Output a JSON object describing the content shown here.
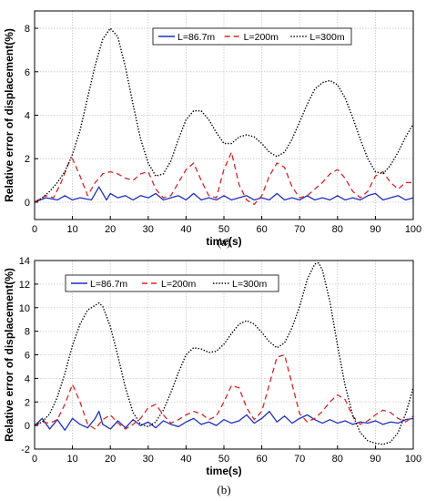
{
  "chart_data": [
    {
      "type": "line",
      "caption": "(a)",
      "xlabel": "time(s)",
      "ylabel": "Relative error of displacement(%)",
      "xlim": [
        0,
        100
      ],
      "ylim": [
        -0.8,
        8.8
      ],
      "xticks": [
        0,
        10,
        20,
        30,
        40,
        50,
        60,
        70,
        80,
        90,
        100
      ],
      "yticks": [
        0,
        2,
        4,
        6,
        8
      ],
      "grid": true,
      "legend_position": "top-right",
      "series": [
        {
          "name": "L=86.7m",
          "color": "#1f2fbf",
          "style": "solid",
          "x": [
            0,
            3,
            6,
            8,
            10,
            12,
            15,
            17,
            19,
            20,
            22,
            24,
            26,
            28,
            30,
            32,
            34,
            36,
            38,
            40,
            42,
            44,
            46,
            48,
            50,
            52,
            54,
            56,
            58,
            60,
            62,
            64,
            66,
            68,
            70,
            72,
            74,
            76,
            78,
            80,
            82,
            84,
            86,
            88,
            90,
            92,
            94,
            96,
            98,
            100
          ],
          "y": [
            0,
            0.2,
            0.1,
            0.3,
            0.1,
            0.2,
            0.1,
            0.7,
            0.1,
            0.4,
            0.2,
            0.3,
            0.1,
            0.3,
            0.2,
            0.4,
            0.1,
            0.2,
            0.3,
            0.1,
            0.4,
            0.1,
            0.2,
            0.1,
            0.3,
            0.1,
            0.2,
            0.3,
            0.1,
            0.2,
            0.1,
            0.4,
            0.1,
            0.2,
            0.1,
            0.3,
            0.1,
            0.2,
            0.1,
            0.3,
            0.1,
            0.2,
            0.1,
            0.3,
            0.4,
            0.1,
            0.2,
            0.3,
            0.1,
            0.2
          ]
        },
        {
          "name": "L=200m",
          "color": "#d62728",
          "style": "dashed",
          "x": [
            0,
            3,
            5,
            7,
            9,
            10,
            12,
            14,
            16,
            18,
            20,
            22,
            24,
            26,
            28,
            30,
            32,
            34,
            36,
            38,
            40,
            42,
            44,
            46,
            48,
            50,
            52,
            54,
            56,
            58,
            60,
            62,
            64,
            66,
            68,
            70,
            72,
            74,
            76,
            78,
            80,
            82,
            84,
            86,
            88,
            90,
            92,
            94,
            96,
            98,
            100
          ],
          "y": [
            0,
            0.3,
            0.2,
            0.9,
            1.8,
            2.0,
            1.2,
            0.3,
            0.9,
            1.3,
            1.4,
            1.3,
            1.1,
            1.0,
            1.3,
            1.4,
            0.6,
            0.2,
            0.3,
            0.9,
            1.5,
            1.8,
            1.0,
            0.3,
            0.2,
            1.5,
            2.3,
            0.8,
            0.1,
            -0.1,
            0.3,
            1.2,
            1.8,
            1.6,
            0.7,
            0.2,
            0.3,
            0.6,
            0.9,
            1.3,
            1.5,
            1.1,
            0.5,
            0.2,
            0.5,
            1.2,
            1.4,
            0.9,
            0.6,
            0.9,
            0.9
          ]
        },
        {
          "name": "L=300m",
          "color": "#000000",
          "style": "dotted",
          "x": [
            0,
            2,
            4,
            6,
            8,
            10,
            12,
            14,
            16,
            18,
            20,
            22,
            24,
            26,
            28,
            30,
            32,
            34,
            36,
            38,
            40,
            42,
            44,
            46,
            48,
            50,
            52,
            54,
            56,
            58,
            60,
            62,
            64,
            66,
            68,
            70,
            72,
            74,
            76,
            78,
            80,
            82,
            84,
            86,
            88,
            90,
            92,
            94,
            96,
            98,
            100
          ],
          "y": [
            0,
            0.2,
            0.5,
            0.9,
            1.4,
            2.2,
            3.3,
            4.8,
            6.3,
            7.5,
            8.0,
            7.6,
            6.2,
            4.5,
            2.9,
            1.8,
            1.2,
            1.3,
            1.9,
            2.9,
            3.8,
            4.2,
            4.2,
            3.8,
            3.2,
            2.7,
            2.7,
            3.0,
            3.1,
            3.0,
            2.7,
            2.3,
            2.1,
            2.3,
            2.9,
            3.7,
            4.5,
            5.2,
            5.5,
            5.6,
            5.4,
            4.8,
            3.9,
            2.9,
            2.0,
            1.4,
            1.3,
            1.7,
            2.3,
            3.0,
            3.6
          ]
        }
      ]
    },
    {
      "type": "line",
      "caption": "(b)",
      "xlabel": "time(s)",
      "ylabel": "Relative error of displacement(%)",
      "xlim": [
        0,
        100
      ],
      "ylim": [
        -2,
        14
      ],
      "xticks": [
        0,
        10,
        20,
        30,
        40,
        50,
        60,
        70,
        80,
        90,
        100
      ],
      "yticks": [
        -2,
        0,
        2,
        4,
        6,
        8,
        10,
        12,
        14
      ],
      "grid": true,
      "legend_position": "top-left",
      "series": [
        {
          "name": "L=86.7m",
          "color": "#1f2fbf",
          "style": "solid",
          "x": [
            0,
            2,
            4,
            6,
            8,
            10,
            12,
            14,
            16,
            17,
            18,
            20,
            22,
            24,
            26,
            28,
            30,
            32,
            34,
            36,
            38,
            40,
            42,
            44,
            46,
            48,
            50,
            52,
            54,
            56,
            58,
            60,
            62,
            64,
            66,
            68,
            70,
            72,
            74,
            76,
            78,
            80,
            82,
            84,
            86,
            88,
            90,
            92,
            94,
            96,
            98,
            100
          ],
          "y": [
            0,
            0.6,
            -0.3,
            0.5,
            -0.4,
            0.6,
            0.1,
            -0.2,
            0.6,
            1.2,
            0.1,
            -0.3,
            0.4,
            -0.2,
            0.5,
            0,
            0.3,
            -0.2,
            0.4,
            0.1,
            -0.1,
            0.3,
            0.6,
            0.1,
            0.3,
            0,
            0.5,
            0.2,
            0.4,
            0.9,
            0.2,
            0.6,
            1.2,
            0.3,
            0.8,
            0.2,
            0.6,
            0.9,
            0.5,
            0.2,
            0.5,
            0.2,
            0.4,
            0.1,
            0.3,
            0.2,
            0.4,
            0.1,
            0.3,
            0.2,
            0.5,
            0.6
          ]
        },
        {
          "name": "L=200m",
          "color": "#d62728",
          "style": "dashed",
          "x": [
            0,
            2,
            4,
            6,
            8,
            10,
            12,
            14,
            16,
            18,
            20,
            22,
            24,
            26,
            28,
            30,
            32,
            34,
            36,
            38,
            40,
            42,
            44,
            46,
            48,
            50,
            52,
            54,
            56,
            58,
            60,
            62,
            64,
            66,
            68,
            70,
            72,
            74,
            76,
            78,
            80,
            82,
            84,
            86,
            88,
            90,
            92,
            94,
            96,
            98,
            100
          ],
          "y": [
            0,
            0.3,
            0.2,
            0.5,
            1.8,
            3.5,
            2.0,
            0.1,
            -0.3,
            0.5,
            0.9,
            0.2,
            -0.3,
            0.1,
            0.6,
            1.5,
            1.8,
            0.9,
            0.2,
            0.5,
            0.9,
            1.2,
            1.0,
            0.5,
            0.8,
            2.0,
            3.4,
            3.2,
            1.5,
            0.5,
            1.2,
            3.5,
            5.8,
            6.0,
            3.5,
            1.0,
            0.3,
            0.6,
            1.2,
            2.0,
            2.6,
            2.2,
            0.8,
            0.1,
            0.4,
            0.9,
            1.3,
            1.1,
            0.6,
            0.3,
            0.8
          ]
        },
        {
          "name": "L=300m",
          "color": "#000000",
          "style": "dotted",
          "x": [
            0,
            2,
            4,
            6,
            8,
            10,
            12,
            14,
            16,
            17,
            18,
            20,
            22,
            24,
            26,
            28,
            30,
            32,
            34,
            36,
            38,
            40,
            42,
            44,
            46,
            48,
            50,
            52,
            54,
            56,
            58,
            60,
            62,
            64,
            66,
            68,
            70,
            72,
            74,
            75,
            76,
            78,
            80,
            82,
            84,
            86,
            88,
            90,
            92,
            94,
            96,
            98,
            100
          ],
          "y": [
            0,
            0.3,
            1.0,
            2.4,
            4.4,
            6.8,
            8.6,
            9.8,
            10.2,
            10.4,
            10.1,
            8.4,
            5.9,
            3.2,
            1.1,
            0.1,
            -0.1,
            0.3,
            1.3,
            2.8,
            4.5,
            6.0,
            6.6,
            6.5,
            6.2,
            6.3,
            6.9,
            7.8,
            8.6,
            8.9,
            8.6,
            7.9,
            7.1,
            6.6,
            7.0,
            8.3,
            10.1,
            12.4,
            13.7,
            13.8,
            13.2,
            10.5,
            6.8,
            3.4,
            0.9,
            -0.6,
            -1.3,
            -1.5,
            -1.6,
            -1.4,
            -0.6,
            1.0,
            3.2
          ]
        }
      ]
    }
  ]
}
